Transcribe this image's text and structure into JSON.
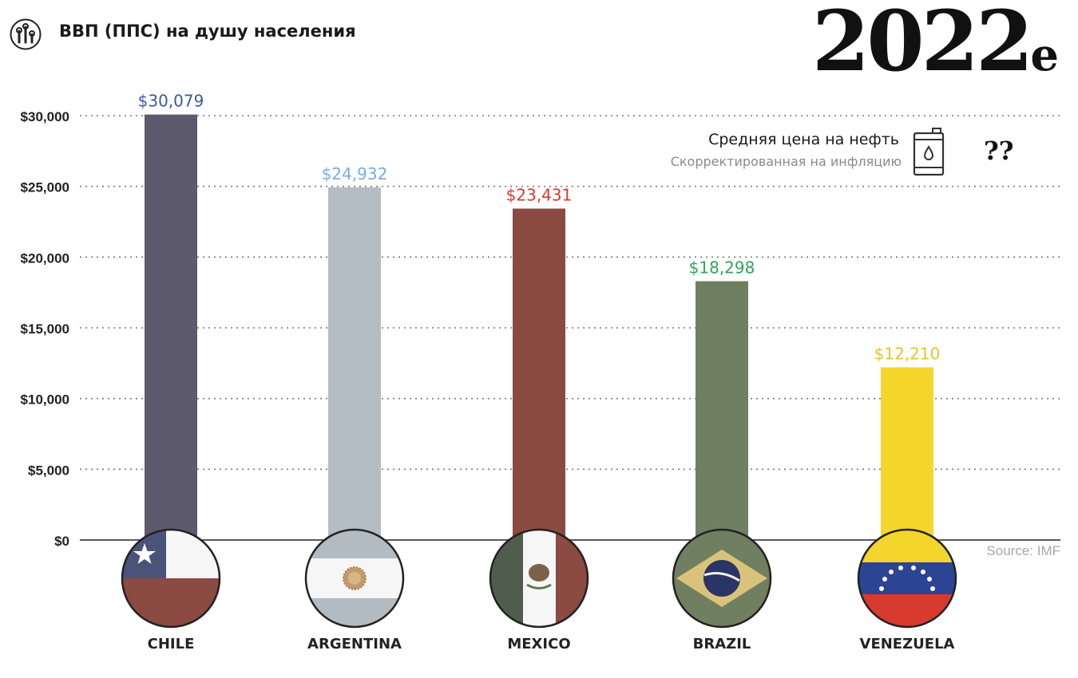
{
  "header": {
    "title": "ВВП (ППС) на душу населения",
    "year": "2022",
    "year_suffix": "e",
    "icon": "chart-mark-icon"
  },
  "oil_legend": {
    "title": "Средняя цена на нефть",
    "subtitle": "Скорректированная на инфляцию",
    "icon": "oil-barrel-icon",
    "value": "??"
  },
  "source": "Source: IMF",
  "chart_data": {
    "type": "bar",
    "categories": [
      "CHILE",
      "ARGENTINA",
      "MEXICO",
      "BRAZIL",
      "VENEZUELA"
    ],
    "values": [
      30079,
      24932,
      23431,
      18298,
      12210
    ],
    "value_labels": [
      "$30,079",
      "$24,932",
      "$23,431",
      "$18,298",
      "$12,210"
    ],
    "bar_colors": [
      "#5d5a6e",
      "#b4bcc4",
      "#8a4a41",
      "#6f8062",
      "#f3d52c"
    ],
    "label_colors": [
      "#3b5aa0",
      "#74aee0",
      "#d93a2e",
      "#2fa45c",
      "#e7c520"
    ],
    "flag_icons": [
      "chile-flag-icon",
      "argentina-flag-icon",
      "mexico-flag-icon",
      "brazil-flag-icon",
      "venezuela-flag-icon"
    ],
    "ylim": [
      0,
      30000
    ],
    "yticks": [
      0,
      5000,
      10000,
      15000,
      20000,
      25000,
      30000
    ],
    "ytick_labels": [
      "$0",
      "$5,000",
      "$10,000",
      "$15,000",
      "$20,000",
      "$25,000",
      "$30,000"
    ],
    "grid": true,
    "xlabel": "",
    "ylabel": ""
  }
}
